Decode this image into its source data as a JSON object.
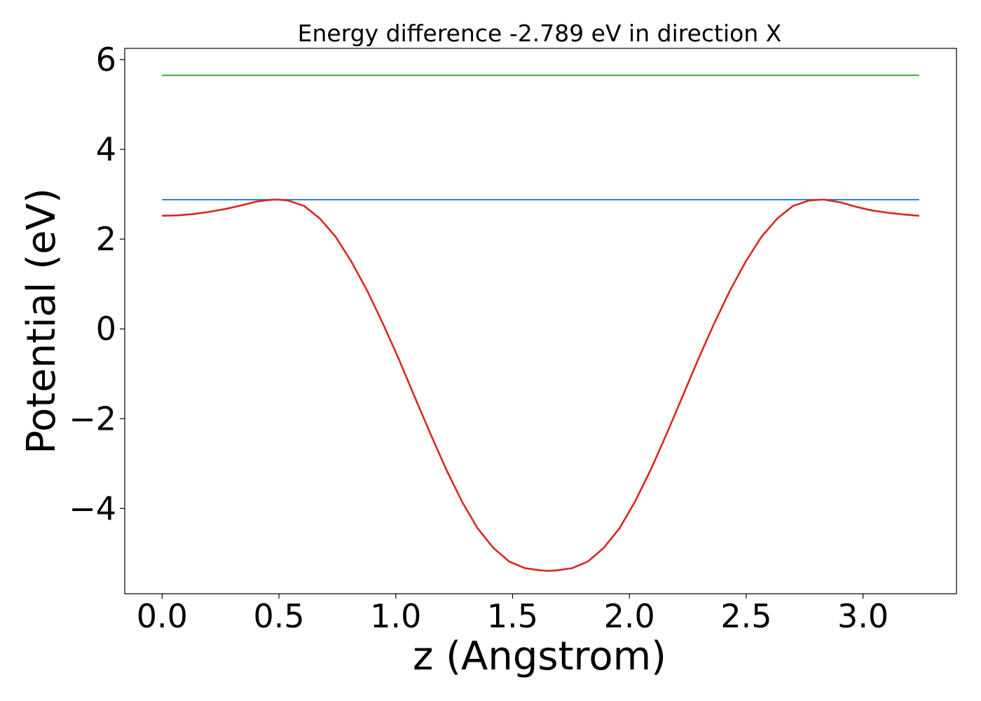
{
  "chart_data": {
    "type": "line",
    "title": "Energy difference -2.789 eV in direction X",
    "xlabel": "z (Angstrom)",
    "ylabel": "Potential (eV)",
    "xlim": [
      -0.16,
      3.4
    ],
    "ylim": [
      -5.9,
      6.25
    ],
    "xticks": [
      {
        "value": 0.0,
        "label": "0.0"
      },
      {
        "value": 0.5,
        "label": "0.5"
      },
      {
        "value": 1.0,
        "label": "1.0"
      },
      {
        "value": 1.5,
        "label": "1.5"
      },
      {
        "value": 2.0,
        "label": "2.0"
      },
      {
        "value": 2.5,
        "label": "2.5"
      },
      {
        "value": 3.0,
        "label": "3.0"
      }
    ],
    "yticks": [
      {
        "value": 6,
        "label": "6"
      },
      {
        "value": 4,
        "label": "4"
      },
      {
        "value": 2,
        "label": "2"
      },
      {
        "value": 0,
        "label": "0"
      },
      {
        "value": -2,
        "label": "−2"
      },
      {
        "value": -4,
        "label": "−4"
      }
    ],
    "grid": false,
    "legend": false,
    "series": [
      {
        "color": "#2ca02c",
        "x": [
          0.0,
          3.24
        ],
        "y": [
          5.65,
          5.65
        ]
      },
      {
        "color": "#1f77b4",
        "x": [
          0.0,
          3.24
        ],
        "y": [
          2.88,
          2.88
        ]
      },
      {
        "color": "#d62728",
        "x": [
          0.0,
          0.068,
          0.135,
          0.203,
          0.27,
          0.338,
          0.405,
          0.473,
          0.5,
          0.54,
          0.608,
          0.675,
          0.743,
          0.81,
          0.878,
          0.945,
          1.013,
          1.08,
          1.148,
          1.215,
          1.283,
          1.35,
          1.418,
          1.485,
          1.553,
          1.62,
          1.653,
          1.688,
          1.755,
          1.823,
          1.89,
          1.958,
          2.025,
          2.093,
          2.16,
          2.228,
          2.295,
          2.363,
          2.43,
          2.498,
          2.565,
          2.633,
          2.7,
          2.768,
          2.82,
          2.835,
          2.903,
          2.97,
          3.038,
          3.105,
          3.173,
          3.24
        ],
        "y": [
          2.52,
          2.53,
          2.56,
          2.61,
          2.67,
          2.75,
          2.84,
          2.88,
          2.88,
          2.86,
          2.74,
          2.46,
          2.05,
          1.5,
          0.85,
          0.12,
          -0.67,
          -1.5,
          -2.33,
          -3.12,
          -3.84,
          -4.44,
          -4.88,
          -5.18,
          -5.33,
          -5.38,
          -5.39,
          -5.38,
          -5.33,
          -5.18,
          -4.88,
          -4.44,
          -3.84,
          -3.12,
          -2.33,
          -1.5,
          -0.67,
          0.12,
          0.85,
          1.5,
          2.05,
          2.46,
          2.74,
          2.86,
          2.88,
          2.88,
          2.82,
          2.72,
          2.64,
          2.59,
          2.55,
          2.52
        ]
      }
    ]
  }
}
